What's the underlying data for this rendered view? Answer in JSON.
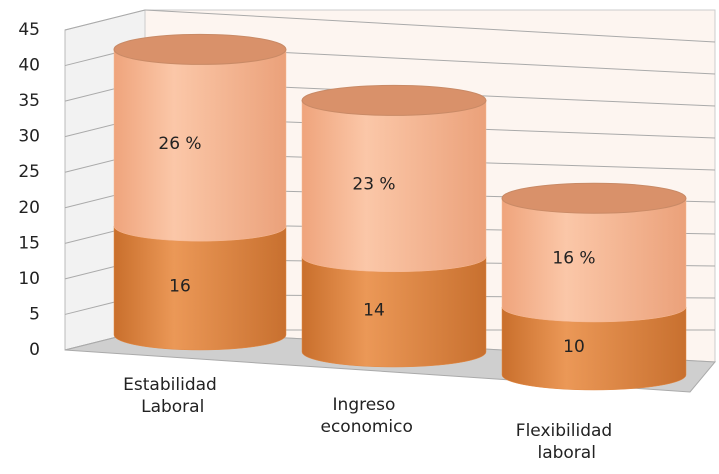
{
  "chart_data": {
    "type": "bar",
    "stacked": true,
    "categories": [
      "Estabilidad Laboral",
      "Ingreso economico",
      "Flexibilidad laboral"
    ],
    "series": [
      {
        "color": "#e38a45",
        "values": [
          16,
          14,
          10
        ]
      },
      {
        "color": "#f6b995",
        "values": [
          26,
          23,
          16
        ],
        "value_labels": [
          "26 %",
          "23 %",
          "16 %"
        ]
      }
    ],
    "ylim": [
      0,
      45
    ],
    "yticks": [
      0,
      5,
      10,
      15,
      20,
      25,
      30,
      35,
      40,
      45
    ],
    "grid": true
  }
}
